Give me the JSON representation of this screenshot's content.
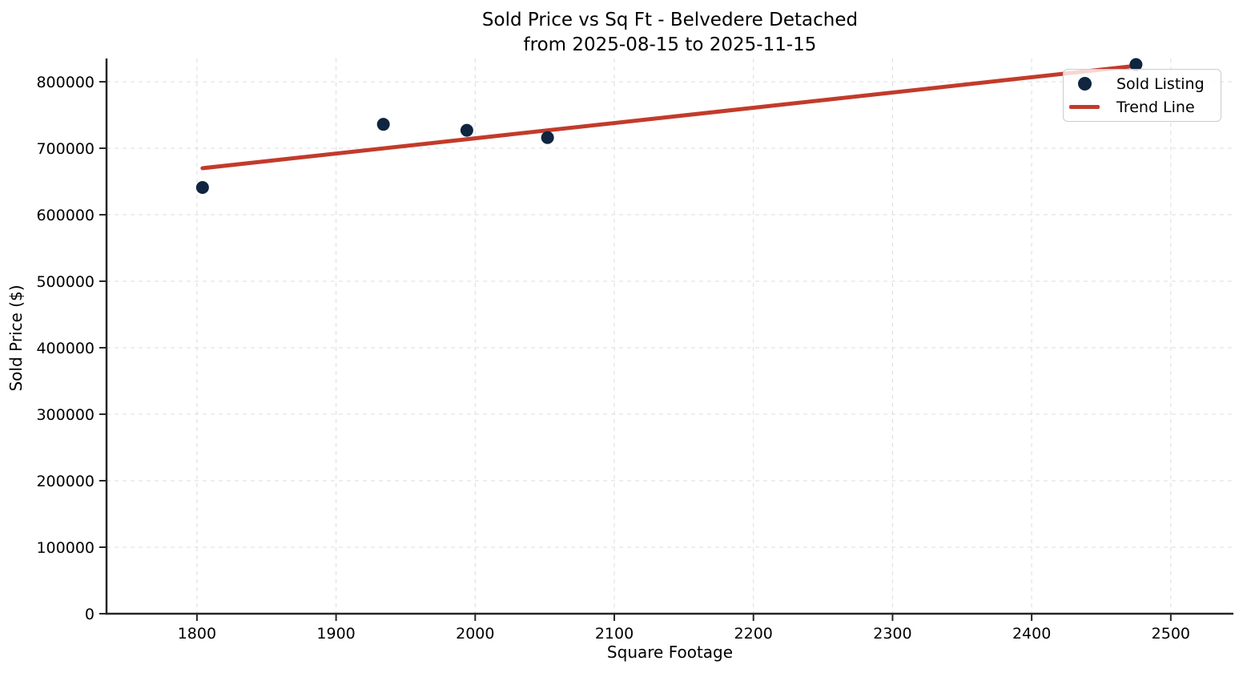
{
  "title": {
    "line1": "Sold Price vs Sq Ft - Belvedere Detached",
    "line2": "from 2025-08-15 to 2025-11-15"
  },
  "chart_data": {
    "type": "scatter",
    "title": "Sold Price vs Sq Ft - Belvedere Detached",
    "subtitle": "from 2025-08-15 to 2025-11-15",
    "xlabel": "Square Footage",
    "ylabel": "Sold Price ($)",
    "xlim": [
      1735,
      2545
    ],
    "ylim": [
      0,
      835000
    ],
    "x_ticks": [
      1800,
      1900,
      2000,
      2100,
      2200,
      2300,
      2400,
      2500
    ],
    "y_ticks": [
      0,
      100000,
      200000,
      300000,
      400000,
      500000,
      600000,
      700000,
      800000
    ],
    "grid": true,
    "grid_style": "dashed",
    "legend_position": "upper right",
    "series": [
      {
        "name": "Sold Listing",
        "type": "scatter",
        "color": "#0f2540",
        "marker_radius": 8,
        "points": [
          [
            1804,
            641000
          ],
          [
            1934,
            736000
          ],
          [
            1994,
            727000
          ],
          [
            2052,
            716000
          ],
          [
            2475,
            826000
          ]
        ]
      },
      {
        "name": "Trend Line",
        "type": "line",
        "color": "#c23b2b",
        "line_width": 5,
        "points": [
          [
            1804,
            670000
          ],
          [
            2475,
            824000
          ]
        ]
      }
    ],
    "legend": [
      {
        "label": "Sold Listing",
        "symbol": "dot",
        "color": "#0f2540"
      },
      {
        "label": "Trend Line",
        "symbol": "line",
        "color": "#c23b2b"
      }
    ]
  },
  "colors": {
    "background": "#ffffff",
    "spine": "#262626",
    "grid": "#dcdcdc",
    "tick_text": "#000000",
    "marker": "#0f2540",
    "trend": "#c23b2b"
  }
}
